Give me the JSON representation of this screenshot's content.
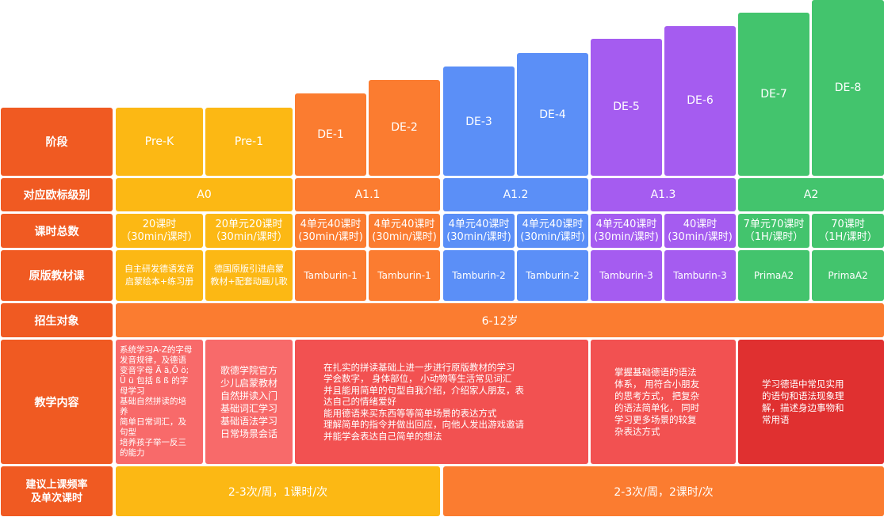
{
  "headers": {
    "stage": "阶段",
    "cefr": "对应欧标级别",
    "hours": "课时总数",
    "textbook": "原版教材课",
    "target": "招生对象",
    "content": "教学内容",
    "frequency": "建议上课频率\n及单次课时"
  },
  "levels": [
    "Pre-K",
    "Pre-1",
    "DE-1",
    "DE-2",
    "DE-3",
    "DE-4",
    "DE-5",
    "DE-6",
    "DE-7",
    "DE-8"
  ],
  "cefr_bands": [
    "A0",
    "A1.1",
    "A1.2",
    "A1.3",
    "A2"
  ],
  "hours": [
    {
      "line1": "20课时",
      "line2": "（30min/课时）"
    },
    {
      "line1": "20单元20课时",
      "line2": "（30min/课时）"
    },
    {
      "line1": "4单元40课时",
      "line2": "(30min/课时)"
    },
    {
      "line1": "4单元40课时",
      "line2": "(30min/课时)"
    },
    {
      "line1": "4单元40课时",
      "line2": "(30min/课时)"
    },
    {
      "line1": "4单元40课时",
      "line2": "(30min/课时)"
    },
    {
      "line1": "4单元40课时",
      "line2": "(30min/课时)"
    },
    {
      "line1": "40课时",
      "line2": "(30min/课时)"
    },
    {
      "line1": "7单元70课时",
      "line2": "（1H/课时）"
    },
    {
      "line1": "70课时",
      "line2": "（1H/课时）"
    }
  ],
  "textbooks": [
    {
      "line1": "自主研发德语发音",
      "line2": "启蒙绘本+练习册"
    },
    {
      "line1": "德国原版引进启蒙",
      "line2": "教材+配套动画儿歌"
    },
    {
      "line1": "Tamburin-1",
      "line2": ""
    },
    {
      "line1": "Tamburin-1",
      "line2": ""
    },
    {
      "line1": "Tamburin-2",
      "line2": ""
    },
    {
      "line1": "Tamburin-2",
      "line2": ""
    },
    {
      "line1": "Tamburin-3",
      "line2": ""
    },
    {
      "line1": "Tamburin-3",
      "line2": ""
    },
    {
      "line1": "PrimaA2",
      "line2": ""
    },
    {
      "line1": "PrimaA2",
      "line2": ""
    }
  ],
  "target": "6-12岁",
  "contents": [
    "系统学习A-Z的字母\n发音规律，及德语\n变音字母 Ä ä,Ö ö;\nÜ ü 包括 ß ß 的字\n母学习\n基础自然拼读的培\n养\n简单日常词汇，及\n句型\n培养孩子举一反三\n的能力",
    "歌德学院官方\n少儿启蒙教材\n自然拼读入门\n基础词汇学习\n基础语法学习\n日常场景会话",
    "在扎实的拼读基础上进一步进行原版教材的学习\n学会数字， 身体部位， 小动物等生活常见词汇\n并且能用简单的句型自我介绍，介绍家人朋友，表\n达自己的情绪爱好\n能用德语来买东西等等简单场景的表达方式\n理解简单的指令并做出回应，向他人发出游戏邀请\n并能学会表达自己简单的想法",
    "掌握基础德语的语法\n体系， 用符合小朋友\n的思考方式， 把复杂\n的语法简单化， 同时\n学习更多场景的较复\n杂表达方式",
    "学习德语中常见实用\n的语句和语法现象理\n解，描述身边事物和\n常用语"
  ],
  "frequency": [
    "2-3次/周，1课时/次",
    "2-3次/周，2课时/次"
  ],
  "colors": {
    "header": "#f05a22",
    "prek": "#fcb814",
    "de1_2": "#fb7c30",
    "de3_4": "#5b8ff7",
    "de5_6": "#a55cf0",
    "de7_8": "#43c46d"
  }
}
